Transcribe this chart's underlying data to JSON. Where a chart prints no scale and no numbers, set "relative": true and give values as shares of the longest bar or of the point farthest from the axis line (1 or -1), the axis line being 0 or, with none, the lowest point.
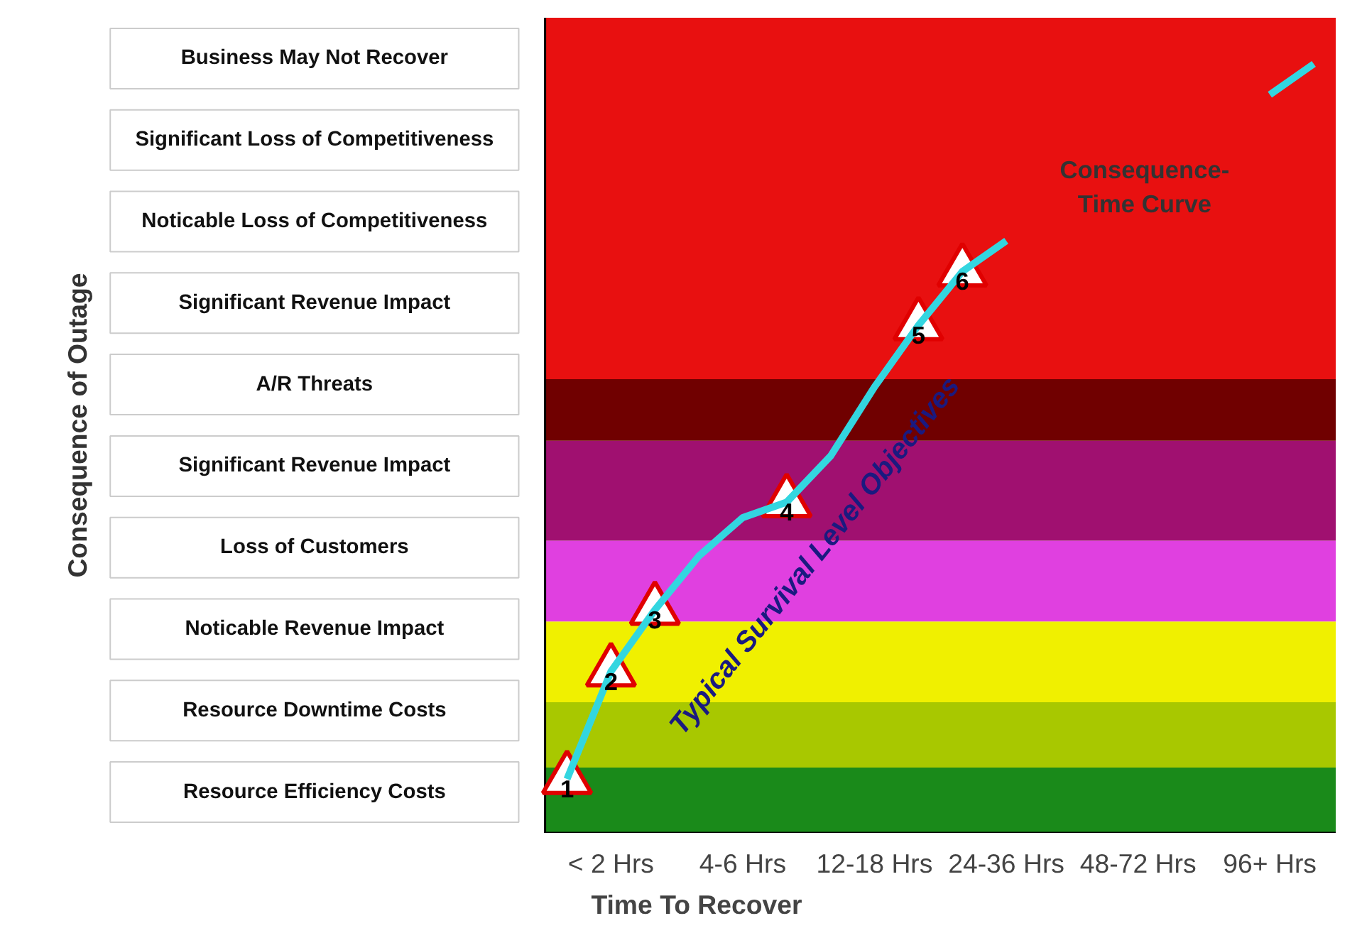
{
  "chart_data": {
    "type": "line",
    "relative": true,
    "xlabel": "Time To Recover",
    "categories": [
      null,
      "< 2 Hrs",
      null,
      null,
      "4-6 Hrs",
      null,
      null,
      "12-18 Hrs",
      null,
      null,
      "24-36 Hrs",
      null,
      null,
      "48-72 Hrs",
      null,
      null,
      "96+ Hrs",
      null
    ],
    "series": [
      {
        "color": "#33d6e0",
        "values": [
          0.07,
          0.21,
          0.29,
          0.36,
          0.41,
          0.43,
          0.49,
          0.58,
          0.66,
          0.73,
          0.77,
          null,
          null,
          null,
          null,
          null,
          0.96,
          1.0
        ]
      },
      {
        "type": "scatter",
        "marker": "triangle",
        "color": "#e00000",
        "values": [
          0.07,
          0.21,
          0.29,
          null,
          null,
          0.43,
          null,
          null,
          0.66,
          0.73,
          null,
          null,
          null,
          null,
          null,
          null,
          null,
          null
        ]
      }
    ],
    "bands": [
      {
        "axis": "y",
        "from": 0,
        "to": 0.085,
        "color": "#1a8a1a"
      },
      {
        "axis": "y",
        "from": 0.085,
        "to": 0.17,
        "color": "#a8c800"
      },
      {
        "axis": "y",
        "from": 0.17,
        "to": 0.275,
        "color": "#f0f000"
      },
      {
        "axis": "y",
        "from": 0.275,
        "to": 0.38,
        "color": "#e040e0"
      },
      {
        "axis": "y",
        "from": 0.38,
        "to": 0.51,
        "color": "#a01070"
      },
      {
        "axis": "y",
        "from": 0.51,
        "to": 0.59,
        "color": "#700000"
      },
      {
        "axis": "y",
        "from": 0.59,
        "to": 1.06,
        "color": "#e81010"
      }
    ],
    "annotations": [
      "Business May Not Recover",
      "Significant Loss of Competitiveness",
      "Noticable Loss of Competitiveness",
      "Significant Revenue Impact",
      "A/R Threats",
      "Significant Revenue Impact",
      "Loss of Customers",
      "Noticable Revenue Impact",
      "Resource Downtime Costs",
      "Resource Efficiency Costs",
      "Typical Survival Level Objectives",
      "Consequence-\nTime Curve",
      "1",
      "2",
      "3",
      "4",
      "5",
      "6",
      "Consequence of Outage"
    ],
    "grid": false,
    "line_style": "solid"
  }
}
